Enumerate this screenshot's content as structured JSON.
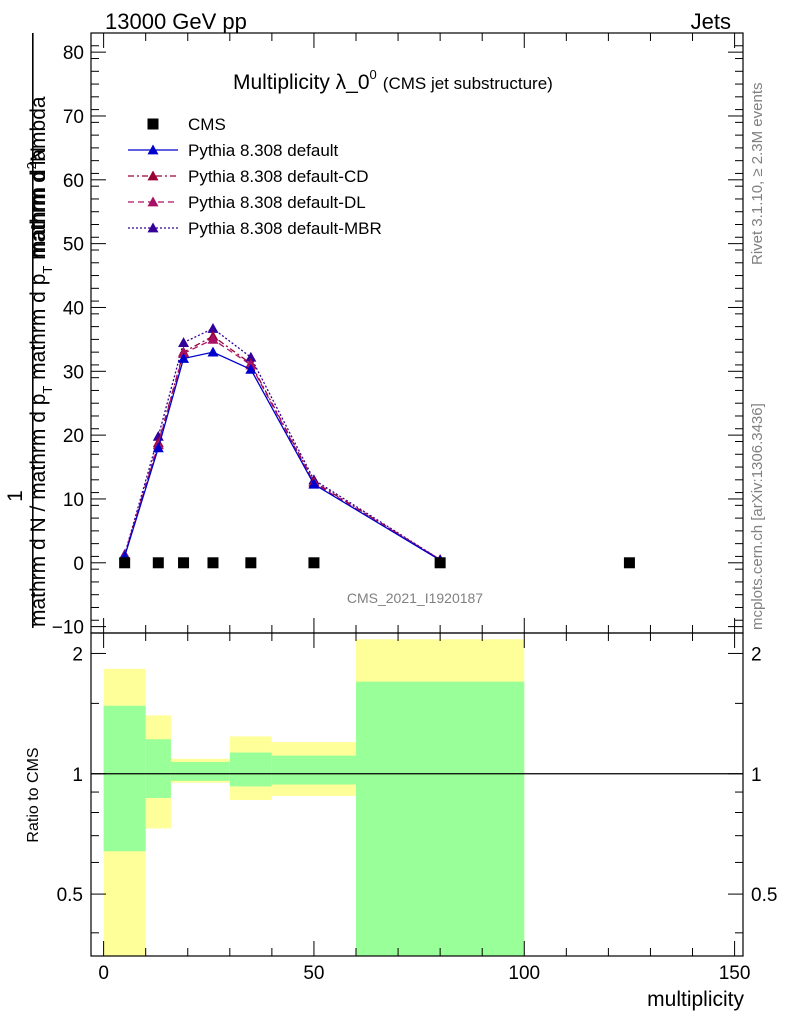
{
  "header": {
    "left": "13000 GeV pp",
    "right": "Jets"
  },
  "title": {
    "main": "Multiplicity λ_0",
    "superscript": "0",
    "paren": "(CMS jet substructure)"
  },
  "side_labels": {
    "rivet": "Rivet 3.1.10, ≥ 2.3M events",
    "mcplots": "mcplots.cern.ch [arXiv:1306.3436]"
  },
  "analysis_tag": "CMS_2021_I1920187",
  "colors": {
    "data": "#000000",
    "default": "#0000cc",
    "cd": "#990033",
    "dl": "#aa1166",
    "mbr": "#330099",
    "band_green": "#99ff99",
    "band_yellow": "#ffff99"
  },
  "chart_data": [
    {
      "type": "line",
      "ylabel": {
        "numerator_1": "1",
        "numerator_2": "mathrm d",
        "numerator_sup": "2",
        "numerator_3": "N",
        "denominator_1": "mathrm d N / mathrm d p",
        "denominator_sub1": "T",
        "denominator_2": " mathrm d p",
        "denominator_sub2": "T",
        "denominator_3": " mathrm d lambda"
      },
      "xlim": [
        -3,
        152
      ],
      "ylim": [
        -11,
        83
      ],
      "y_ticks": [
        -10,
        0,
        10,
        20,
        30,
        40,
        50,
        60,
        70,
        80
      ],
      "x_ticks": [
        0,
        50,
        100,
        150
      ],
      "legend_position": "top-left",
      "series": [
        {
          "name": "CMS",
          "style": "markers",
          "x": [
            5,
            13,
            19,
            26,
            35,
            50,
            80,
            125
          ],
          "y": [
            0,
            0,
            0,
            0,
            0,
            0,
            0,
            0
          ]
        },
        {
          "name": "Pythia 8.308 default",
          "style": "solid",
          "x": [
            5,
            13,
            19,
            26,
            35,
            50,
            80
          ],
          "y": [
            1.0,
            18.0,
            32.0,
            33.0,
            30.3,
            12.3,
            0.4
          ]
        },
        {
          "name": "Pythia 8.308 default-CD",
          "style": "dashdot",
          "x": [
            5,
            13,
            19,
            26,
            35,
            50,
            80
          ],
          "y": [
            1.2,
            18.8,
            33.0,
            35.5,
            31.2,
            12.7,
            0.5
          ]
        },
        {
          "name": "Pythia 8.308 default-DL",
          "style": "dashed",
          "x": [
            5,
            13,
            19,
            26,
            35,
            50,
            80
          ],
          "y": [
            1.2,
            18.5,
            32.8,
            35.0,
            31.0,
            12.5,
            0.5
          ]
        },
        {
          "name": "Pythia 8.308 default-MBR",
          "style": "dotted",
          "x": [
            5,
            13,
            19,
            26,
            35,
            50,
            80
          ],
          "y": [
            1.3,
            19.8,
            34.5,
            36.7,
            32.2,
            13.0,
            0.5
          ]
        }
      ]
    },
    {
      "type": "area",
      "ylabel": "Ratio to CMS",
      "xlabel": "multiplicity",
      "xlim": [
        -3,
        152
      ],
      "ylim": [
        0.35,
        2.25
      ],
      "y_ticks": [
        0.5,
        1,
        2
      ],
      "y_tick_labels": [
        "0.5",
        "1",
        "2"
      ],
      "x_ticks": [
        0,
        50,
        100,
        150
      ],
      "reference_line": 1,
      "bins": [
        {
          "x0": 0,
          "x1": 10,
          "yellow": [
            0.35,
            1.83
          ],
          "green": [
            0.64,
            1.48
          ]
        },
        {
          "x0": 10,
          "x1": 16,
          "yellow": [
            0.73,
            1.4
          ],
          "green": [
            0.87,
            1.22
          ]
        },
        {
          "x0": 16,
          "x1": 30,
          "yellow": [
            0.95,
            1.09
          ],
          "green": [
            0.96,
            1.07
          ]
        },
        {
          "x0": 30,
          "x1": 40,
          "yellow": [
            0.86,
            1.24
          ],
          "green": [
            0.93,
            1.13
          ]
        },
        {
          "x0": 40,
          "x1": 60,
          "yellow": [
            0.88,
            1.2
          ],
          "green": [
            0.94,
            1.11
          ]
        },
        {
          "x0": 60,
          "x1": 100,
          "yellow": [
            0.35,
            2.17
          ],
          "green": [
            0.35,
            1.7
          ]
        }
      ]
    }
  ]
}
